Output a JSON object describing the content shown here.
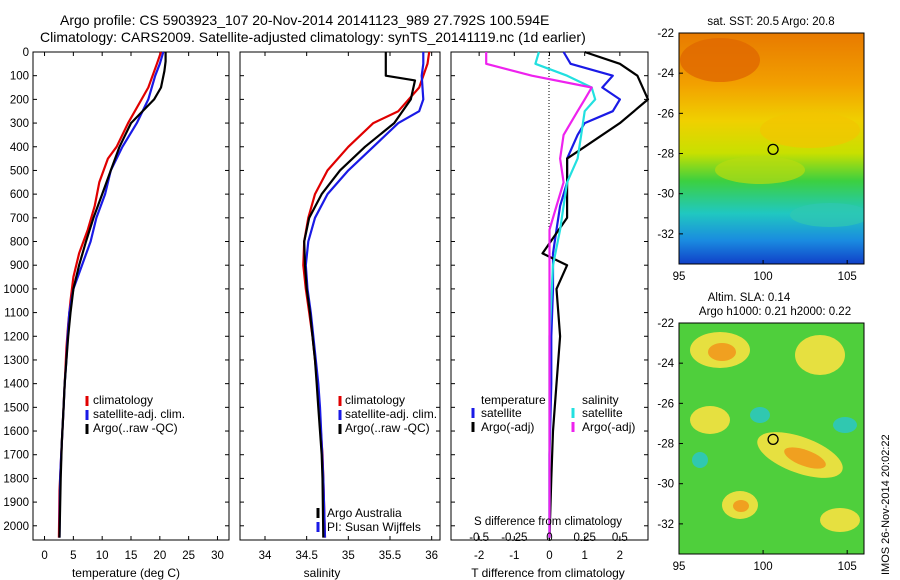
{
  "header": {
    "line1": "Argo profile: CS 5903923_107 20-Nov-2014 20141123_989 27.792S 100.594E",
    "line2": "Climatology: CARS2009. Satellite-adjusted climatology: synTS_20141119.nc (1d earlier)"
  },
  "colors": {
    "climatology": "#e00000",
    "satellite_clim": "#1a1ae6",
    "argo": "#000000",
    "salinity_satellite": "#22e0e0",
    "salinity_argo": "#ee22ee"
  },
  "depth_axis": {
    "ylim": [
      2060,
      0
    ],
    "ticks": [
      0,
      100,
      200,
      300,
      400,
      500,
      600,
      700,
      800,
      900,
      1000,
      1100,
      1200,
      1300,
      1400,
      1500,
      1600,
      1700,
      1800,
      1900,
      2000
    ]
  },
  "panels": {
    "temperature": {
      "xlabel": "temperature (deg C)",
      "xlim": [
        -2,
        32
      ],
      "xticks": [
        0,
        5,
        10,
        15,
        20,
        25,
        30
      ],
      "legend": [
        "climatology",
        "satellite-adj. clim.",
        "Argo(..raw -QC)"
      ]
    },
    "salinity": {
      "xlabel": "salinity",
      "xlim": [
        33.7,
        36.1
      ],
      "xticks": [
        34,
        34.5,
        35,
        35.5,
        36
      ],
      "legend": [
        "climatology",
        "satellite-adj. clim.",
        "Argo(..raw -QC)"
      ],
      "note1": "Argo Australia",
      "note2": "PI: Susan Wijffels"
    },
    "difference": {
      "xlabel_bottom": "T difference from climatology",
      "xlabel_top": "S difference from climatology",
      "xlim": [
        -2.8,
        2.8
      ],
      "xticks_bottom": [
        -2,
        -1,
        0,
        1,
        2
      ],
      "xticks_top": [
        "-0.5",
        "-0.25",
        "0",
        "0.25",
        "0.5"
      ],
      "legend": {
        "temp_heading": "temperature",
        "sal_heading": "salinity",
        "temp_satellite": "satellite",
        "temp_argo": "Argo(-adj)",
        "sal_satellite": "satellite",
        "sal_argo": "Argo(-adj)"
      }
    }
  },
  "chart_data": [
    {
      "type": "line",
      "title": "",
      "xlabel": "temperature (deg C)",
      "ylabel": "",
      "xlim": [
        -2,
        32
      ],
      "ylim": [
        2060,
        0
      ],
      "series": [
        {
          "name": "climatology",
          "x": [
            20.2,
            19.5,
            18.0,
            14.5,
            12.5,
            11.0,
            9.5,
            8.7,
            7.5,
            6.0,
            5.0,
            4.5,
            4.1,
            3.8,
            3.6,
            3.4,
            3.2,
            3.0,
            2.8,
            2.6,
            2.5
          ],
          "y": [
            0,
            50,
            150,
            300,
            400,
            450,
            550,
            650,
            750,
            850,
            950,
            1050,
            1150,
            1250,
            1350,
            1450,
            1550,
            1650,
            1750,
            1850,
            2050
          ]
        },
        {
          "name": "satellite-adj. clim.",
          "x": [
            20.6,
            20.0,
            19.2,
            18.0,
            16.0,
            13.5,
            11.5,
            10.5,
            9.0,
            8.0,
            6.5,
            5.0,
            4.3,
            4.0,
            3.8,
            3.5,
            3.3,
            3.1,
            2.9,
            2.7,
            2.6
          ],
          "y": [
            0,
            50,
            100,
            200,
            300,
            400,
            500,
            600,
            700,
            800,
            900,
            1000,
            1100,
            1200,
            1300,
            1400,
            1500,
            1600,
            1700,
            1800,
            2050
          ]
        },
        {
          "name": "Argo(..raw -QC)",
          "x": [
            21.0,
            21.0,
            20.8,
            20.2,
            19.0,
            15.0,
            13.0,
            11.5,
            10.0,
            8.5,
            7.2,
            6.0,
            5.0,
            4.5,
            4.1,
            3.8,
            3.5,
            3.3,
            3.0,
            2.8,
            2.6
          ],
          "y": [
            0,
            40,
            80,
            150,
            200,
            300,
            400,
            500,
            600,
            700,
            800,
            900,
            1000,
            1100,
            1200,
            1300,
            1400,
            1500,
            1650,
            1800,
            2050
          ]
        }
      ]
    },
    {
      "type": "line",
      "title": "",
      "xlabel": "salinity",
      "ylabel": "",
      "xlim": [
        33.7,
        36.1
      ],
      "ylim": [
        2060,
        0
      ],
      "series": [
        {
          "name": "climatology",
          "x": [
            35.97,
            35.95,
            35.85,
            35.6,
            35.3,
            35.0,
            34.75,
            34.6,
            34.52,
            34.47,
            34.46,
            34.49,
            34.53,
            34.57,
            34.6,
            34.63,
            34.65,
            34.67,
            34.69,
            34.7,
            34.72
          ],
          "y": [
            0,
            50,
            150,
            250,
            300,
            400,
            500,
            600,
            700,
            800,
            900,
            1000,
            1100,
            1200,
            1300,
            1400,
            1500,
            1600,
            1700,
            1800,
            2050
          ]
        },
        {
          "name": "satellite-adj. clim.",
          "x": [
            35.9,
            35.9,
            35.88,
            35.9,
            35.85,
            35.6,
            35.3,
            35.0,
            34.75,
            34.6,
            34.52,
            34.49,
            34.51,
            34.55,
            34.58,
            34.61,
            34.64,
            34.66,
            34.68,
            34.7,
            34.72
          ],
          "y": [
            0,
            50,
            100,
            200,
            250,
            300,
            400,
            500,
            600,
            700,
            800,
            900,
            1000,
            1100,
            1200,
            1300,
            1400,
            1500,
            1650,
            1800,
            2050
          ]
        },
        {
          "name": "Argo(..raw -QC)",
          "x": [
            35.45,
            35.45,
            35.8,
            35.75,
            35.55,
            35.2,
            34.9,
            34.68,
            34.53,
            34.47,
            34.48,
            34.5,
            34.54,
            34.57,
            34.6,
            34.62,
            34.64,
            34.66,
            34.68,
            34.69,
            34.7
          ],
          "y": [
            0,
            100,
            120,
            200,
            300,
            400,
            500,
            600,
            700,
            800,
            900,
            1000,
            1100,
            1200,
            1300,
            1400,
            1500,
            1600,
            1700,
            1800,
            2050
          ]
        }
      ]
    },
    {
      "type": "line",
      "title": "",
      "xlabel": "T difference from climatology",
      "ylabel": "",
      "xlim": [
        -2.8,
        2.8
      ],
      "ylim": [
        2060,
        0
      ],
      "series": [
        {
          "name": "temperature satellite",
          "x": [
            0.4,
            0.6,
            1.8,
            1.5,
            2.0,
            1.8,
            1.0,
            0.8,
            0.5,
            0.5,
            0.3,
            0.2,
            0.1,
            0.1,
            0.05,
            0.05,
            0.0,
            0.0
          ],
          "y": [
            0,
            50,
            100,
            150,
            200,
            250,
            300,
            350,
            450,
            550,
            650,
            750,
            850,
            1000,
            1200,
            1400,
            1700,
            2050
          ]
        },
        {
          "name": "temperature Argo(-adj)",
          "x": [
            1.0,
            2.0,
            2.5,
            2.8,
            2.0,
            1.5,
            1.0,
            0.5,
            0.5,
            0.5,
            -0.2,
            0.5,
            0.2,
            0.3,
            0.2,
            0.1,
            0.05,
            0.0
          ],
          "y": [
            0,
            50,
            100,
            200,
            300,
            350,
            400,
            450,
            550,
            700,
            850,
            900,
            1000,
            1200,
            1400,
            1600,
            1800,
            2050
          ]
        },
        {
          "name": "salinity satellite",
          "x": [
            -0.3,
            -0.4,
            0.5,
            1.2,
            1.3,
            1.0,
            0.9,
            0.8,
            0.5,
            0.4,
            0.3,
            0.1,
            0.0,
            0.0
          ],
          "y": [
            0,
            50,
            100,
            150,
            200,
            250,
            350,
            450,
            550,
            650,
            750,
            900,
            1200,
            2050
          ]
        },
        {
          "name": "salinity Argo(-adj)",
          "x": [
            -1.8,
            -1.8,
            -0.5,
            1.2,
            1.0,
            0.8,
            0.4,
            0.3,
            0.4,
            0.2,
            0.0,
            0.0,
            0.0,
            0.0
          ],
          "y": [
            0,
            50,
            100,
            150,
            200,
            250,
            350,
            450,
            550,
            650,
            750,
            900,
            1200,
            2050
          ]
        }
      ]
    },
    {
      "type": "heatmap",
      "title": "sat. SST: 20.5 Argo: 20.8",
      "xlim": [
        95,
        106
      ],
      "ylim": [
        -33.5,
        -22
      ],
      "xticks": [
        95,
        100,
        105
      ],
      "yticks": [
        -22,
        -24,
        -26,
        -28,
        -30,
        -32
      ],
      "marker": {
        "lon": 100.594,
        "lat": -27.792
      }
    },
    {
      "type": "heatmap",
      "title": "Altim. SLA: 0.14",
      "subtitle": "Argo h1000: 0.21 h2000: 0.22",
      "xlim": [
        95,
        106
      ],
      "ylim": [
        -33.5,
        -22
      ],
      "xticks": [
        95,
        100,
        105
      ],
      "yticks": [
        -22,
        -24,
        -26,
        -28,
        -30,
        -32
      ],
      "marker": {
        "lon": 100.594,
        "lat": -27.792
      }
    }
  ],
  "maps": {
    "sst_title": "sat. SST: 20.5 Argo: 20.8",
    "sla_title1": "Altim. SLA: 0.14",
    "sla_title2": "Argo h1000: 0.21 h2000: 0.22"
  },
  "watermark": "IMOS 26-Nov-2014 20:02:22"
}
